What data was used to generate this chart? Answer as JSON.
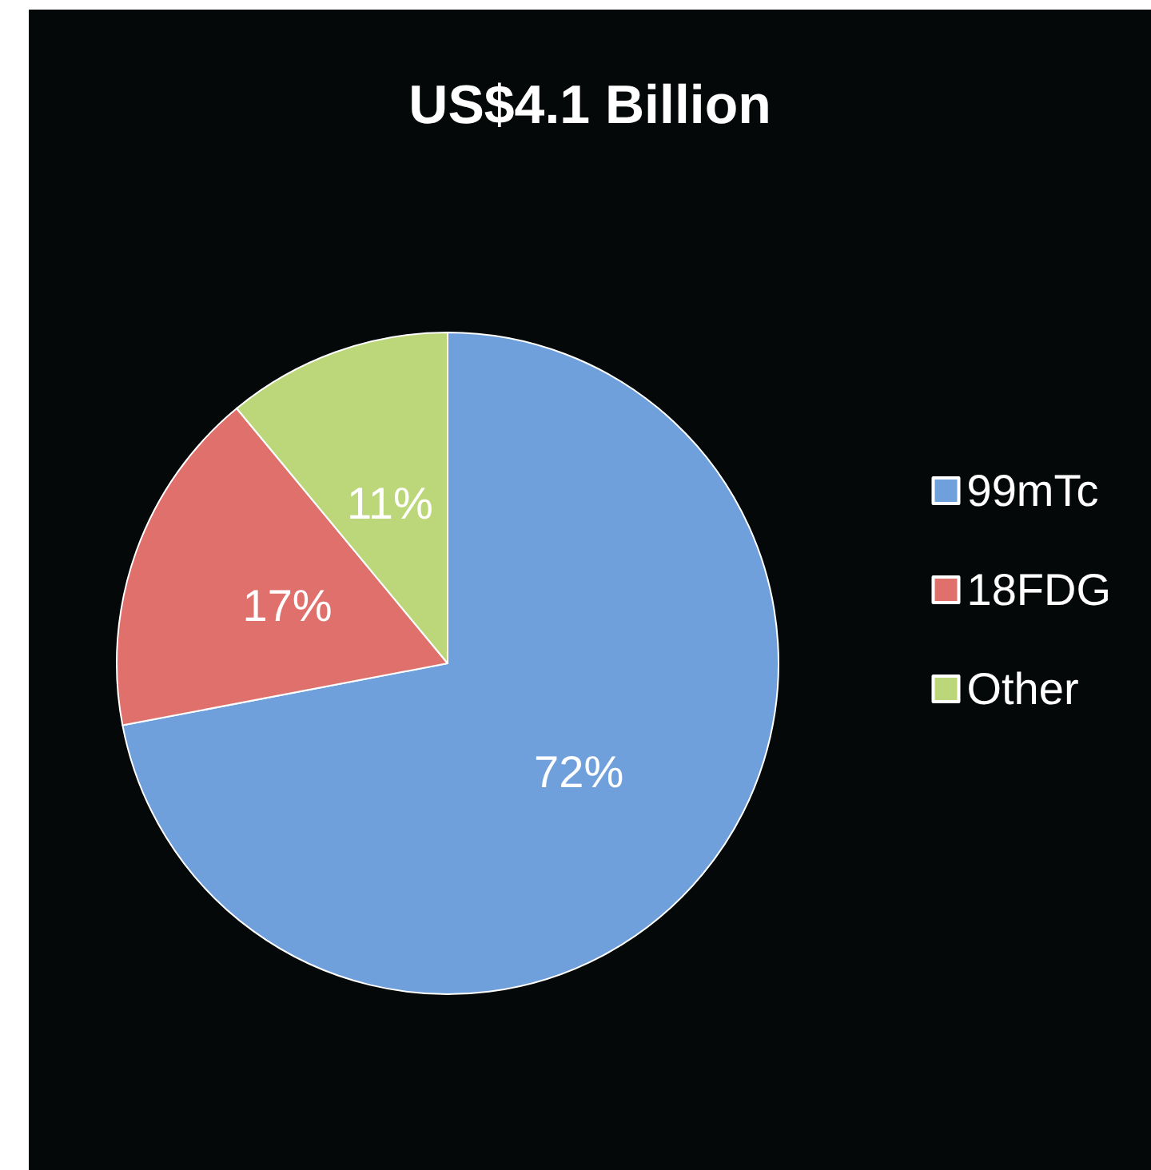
{
  "chart_data": {
    "type": "pie",
    "title": "US$4.1 Billion",
    "categories": [
      "99mTc",
      "18FDG",
      "Other"
    ],
    "values": [
      72,
      17,
      11
    ],
    "colors": [
      "#6fa0dc",
      "#e0706c",
      "#bcd77a"
    ],
    "value_labels": [
      "72%",
      "17%",
      "11%"
    ],
    "legend": "right"
  }
}
